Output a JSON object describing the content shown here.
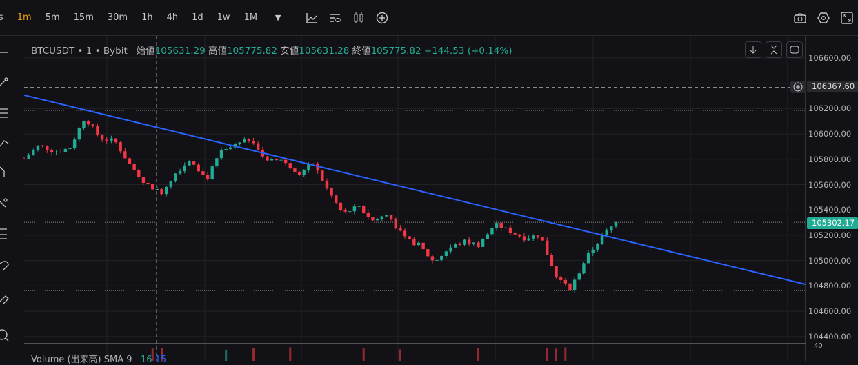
{
  "toolbar": {
    "timeframes": [
      "s",
      "1m",
      "5m",
      "15m",
      "30m",
      "1h",
      "4h",
      "1d",
      "1w",
      "1M"
    ],
    "active": "1m"
  },
  "legend": {
    "symbol": "BTCUSDT • 1 • Bybit",
    "open_label": "始値",
    "open": "105631.29",
    "high_label": "高値",
    "high": "105775.82",
    "low_label": "安値",
    "low": "105631.28",
    "close_label": "終値",
    "close": "105775.82",
    "change": "+144.53 (+0.14%)"
  },
  "volume": {
    "label": "Volume (出来高) SMA 9",
    "value1": "16",
    "value2": "15"
  },
  "price_axis": {
    "labels": [
      "106600.00",
      "106200.00",
      "106000.00",
      "105800.00",
      "105600.00",
      "105400.00",
      "105200.00",
      "105000.00",
      "104800.00",
      "104600.00",
      "104400.00"
    ],
    "crosshair_price": "106367.60",
    "last_price": "105302.17",
    "vol_tick": "40"
  },
  "colors": {
    "up": "#22ab94",
    "down": "#f23645",
    "trendline": "#2962ff",
    "last_price_bg": "#22ab94",
    "accent": "#f0a30a"
  },
  "chart_data": {
    "type": "candlestick",
    "symbol": "BTCUSDT",
    "ylim": [
      104360,
      106700
    ],
    "trendline": {
      "start": 106306,
      "end": 104812
    },
    "close_trace": [
      105804,
      105913,
      105859,
      105886,
      106131,
      105968,
      105941,
      105750,
      105614,
      105532,
      105695,
      105804,
      105641,
      105859,
      105913,
      105968,
      105777,
      105804,
      105668,
      105777,
      105559,
      105368,
      105423,
      105314,
      105368,
      105177,
      105123,
      104987,
      105096,
      105150,
      105123,
      105286,
      105232,
      105177,
      105205,
      104878,
      104769,
      105014,
      105177,
      105303
    ],
    "horizontal_levels": [
      106367.6,
      106186,
      105302.17,
      104763
    ]
  }
}
